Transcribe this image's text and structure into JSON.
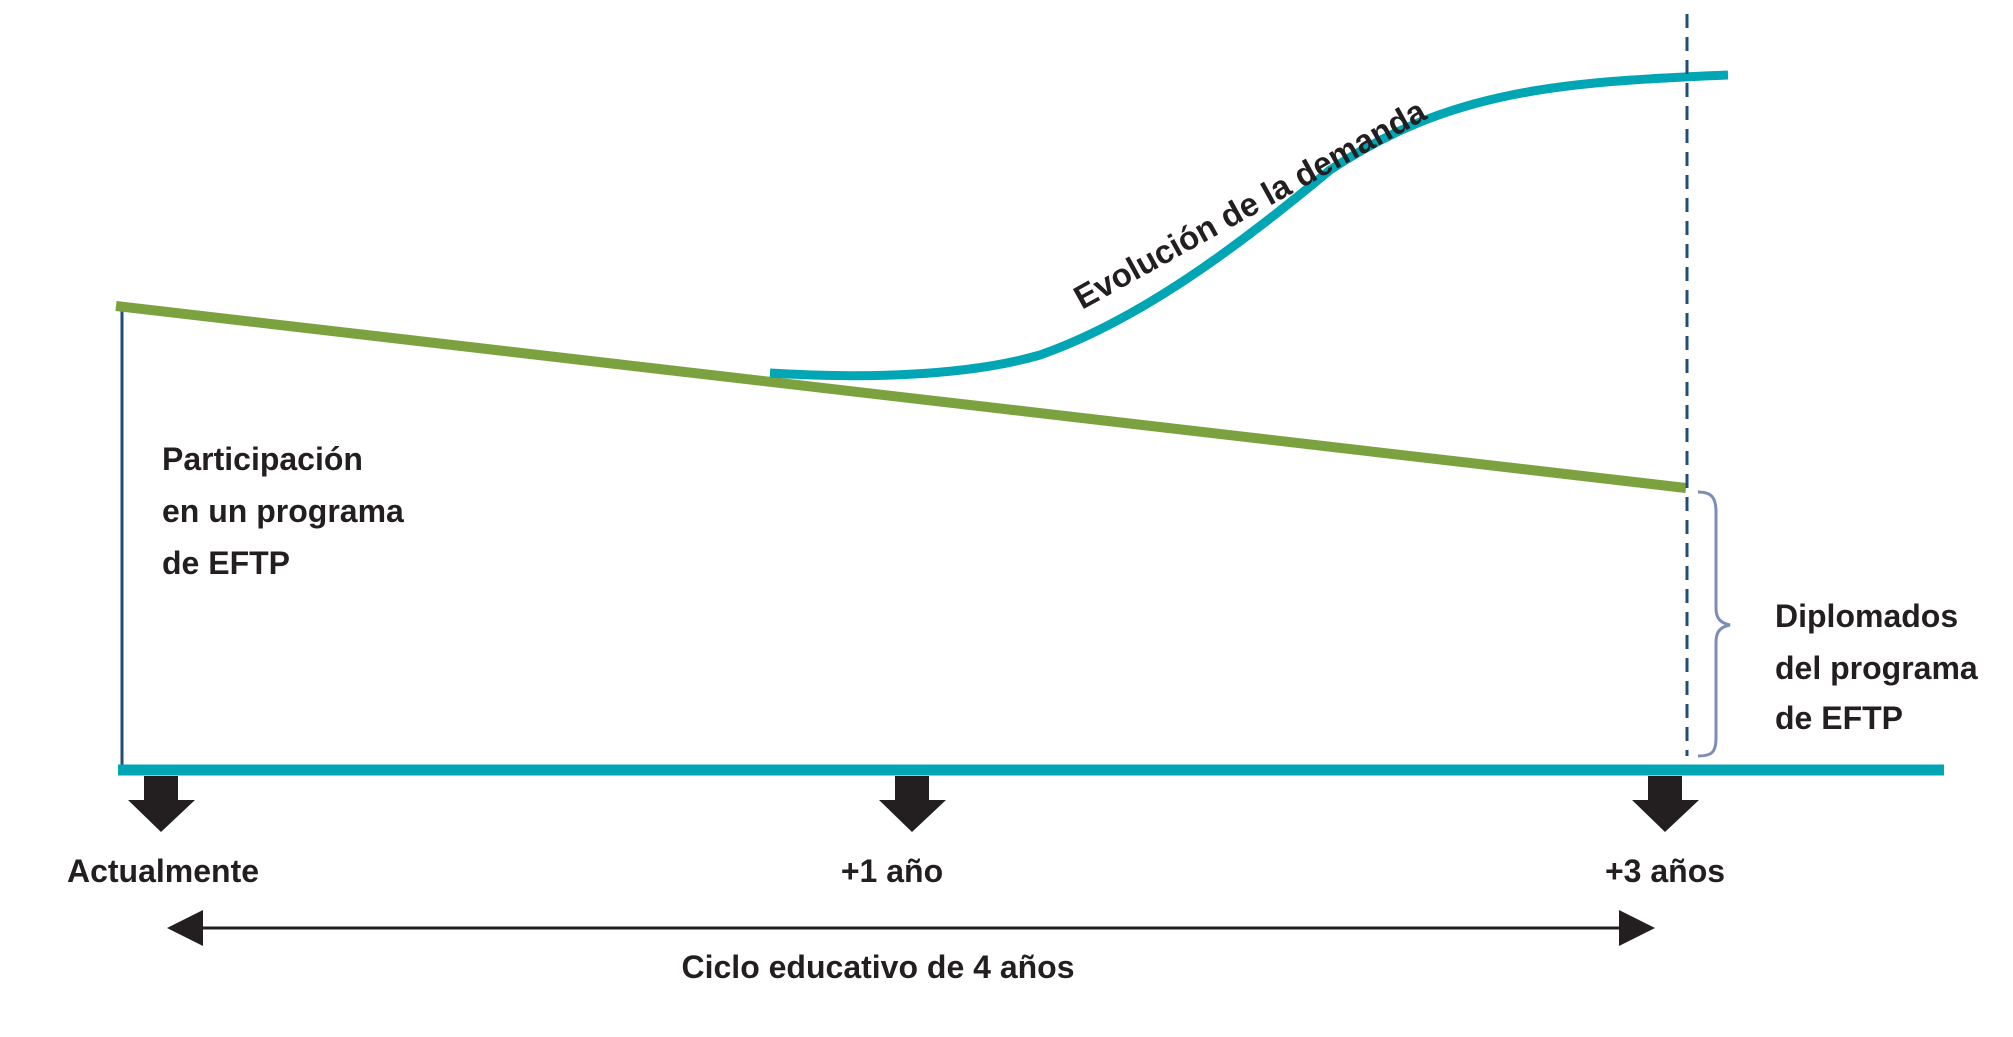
{
  "diagram": {
    "curve_label": "Evolución de la demanda",
    "participation_label": [
      "Participación",
      "en un programa",
      "de EFTP"
    ],
    "graduates_label": [
      "Diplomados",
      "del programa",
      "de EFTP"
    ],
    "timeline": {
      "start_label": "Actualmente",
      "mid_label": "+1 año",
      "end_label": "+3 años"
    },
    "cycle_label": "Ciclo educativo de 4 años",
    "colors": {
      "participation_line": "#7ba23f",
      "demand_curve": "#00a6b4",
      "baseline": "#00a6b4",
      "axis": "#1f4e79",
      "dashed_marker": "#1f4e79",
      "brace": "#7b8db8",
      "arrows": "#231f20",
      "text": "#231f20"
    }
  }
}
